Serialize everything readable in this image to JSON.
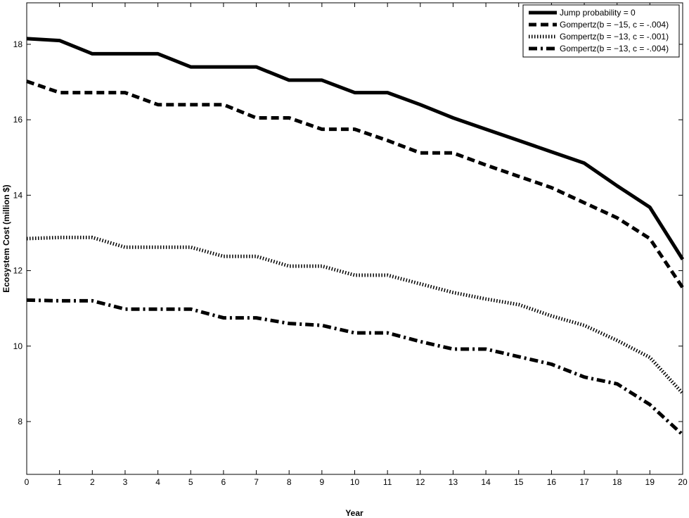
{
  "chart_data": {
    "type": "line",
    "title": "",
    "xlabel": "Year",
    "ylabel": "Ecosystem Cost (million $)",
    "xlim": [
      0,
      20
    ],
    "ylim": [
      6.6,
      19.1
    ],
    "xticks": [
      0,
      1,
      2,
      3,
      4,
      5,
      6,
      7,
      8,
      9,
      10,
      11,
      12,
      13,
      14,
      15,
      16,
      17,
      18,
      19,
      20
    ],
    "yticks": [
      8,
      10,
      12,
      14,
      16,
      18
    ],
    "grid": false,
    "legend_position": "top-right",
    "x": [
      0,
      1,
      2,
      3,
      4,
      5,
      6,
      7,
      8,
      9,
      10,
      11,
      12,
      13,
      14,
      15,
      16,
      17,
      18,
      19,
      20
    ],
    "series": [
      {
        "name": "Jump probability  = 0",
        "style": "solid",
        "values": [
          18.15,
          18.1,
          17.75,
          17.75,
          17.75,
          17.4,
          17.4,
          17.4,
          17.05,
          17.05,
          16.72,
          16.72,
          16.4,
          16.05,
          15.75,
          15.45,
          15.15,
          14.85,
          14.25,
          13.68,
          12.3
        ]
      },
      {
        "name": "Gompertz(b = −15, c = -.004)",
        "style": "dashed",
        "values": [
          17.02,
          16.72,
          16.72,
          16.72,
          16.4,
          16.4,
          16.4,
          16.05,
          16.05,
          15.75,
          15.75,
          15.45,
          15.12,
          15.12,
          14.8,
          14.5,
          14.2,
          13.8,
          13.4,
          12.85,
          11.55
        ]
      },
      {
        "name": "Gompertz(b = −13, c = -.001)",
        "style": "dotted",
        "values": [
          12.85,
          12.88,
          12.88,
          12.62,
          12.62,
          12.62,
          12.38,
          12.38,
          12.12,
          12.12,
          11.88,
          11.88,
          11.65,
          11.42,
          11.25,
          11.1,
          10.8,
          10.55,
          10.15,
          9.7,
          8.75
        ]
      },
      {
        "name": "Gompertz(b = −13, c = -.004)",
        "style": "dashdot",
        "values": [
          11.22,
          11.2,
          11.2,
          10.98,
          10.98,
          10.98,
          10.75,
          10.75,
          10.6,
          10.55,
          10.35,
          10.35,
          10.12,
          9.92,
          9.92,
          9.72,
          9.52,
          9.18,
          9.0,
          8.45,
          7.65
        ]
      }
    ]
  }
}
